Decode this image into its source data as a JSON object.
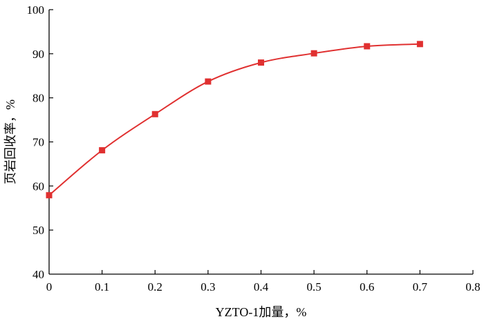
{
  "chart_data": {
    "type": "line",
    "title": "",
    "xlabel": "YZTO-1加量，%",
    "ylabel": "页岩回收率，%",
    "xlim": [
      0,
      0.8
    ],
    "ylim": [
      40,
      100
    ],
    "x_ticks": [
      "0",
      "0.1",
      "0.2",
      "0.3",
      "0.4",
      "0.5",
      "0.6",
      "0.7",
      "0.8"
    ],
    "y_ticks": [
      "40",
      "50",
      "60",
      "70",
      "80",
      "90",
      "100"
    ],
    "grid": false,
    "legend": "none",
    "series": [
      {
        "color": "#e03030",
        "marker": "square",
        "x": [
          0,
          0.1,
          0.2,
          0.3,
          0.4,
          0.5,
          0.6,
          0.7
        ],
        "y": [
          57.9,
          68.1,
          76.3,
          83.7,
          88.0,
          90.1,
          91.7,
          92.2
        ]
      }
    ]
  }
}
